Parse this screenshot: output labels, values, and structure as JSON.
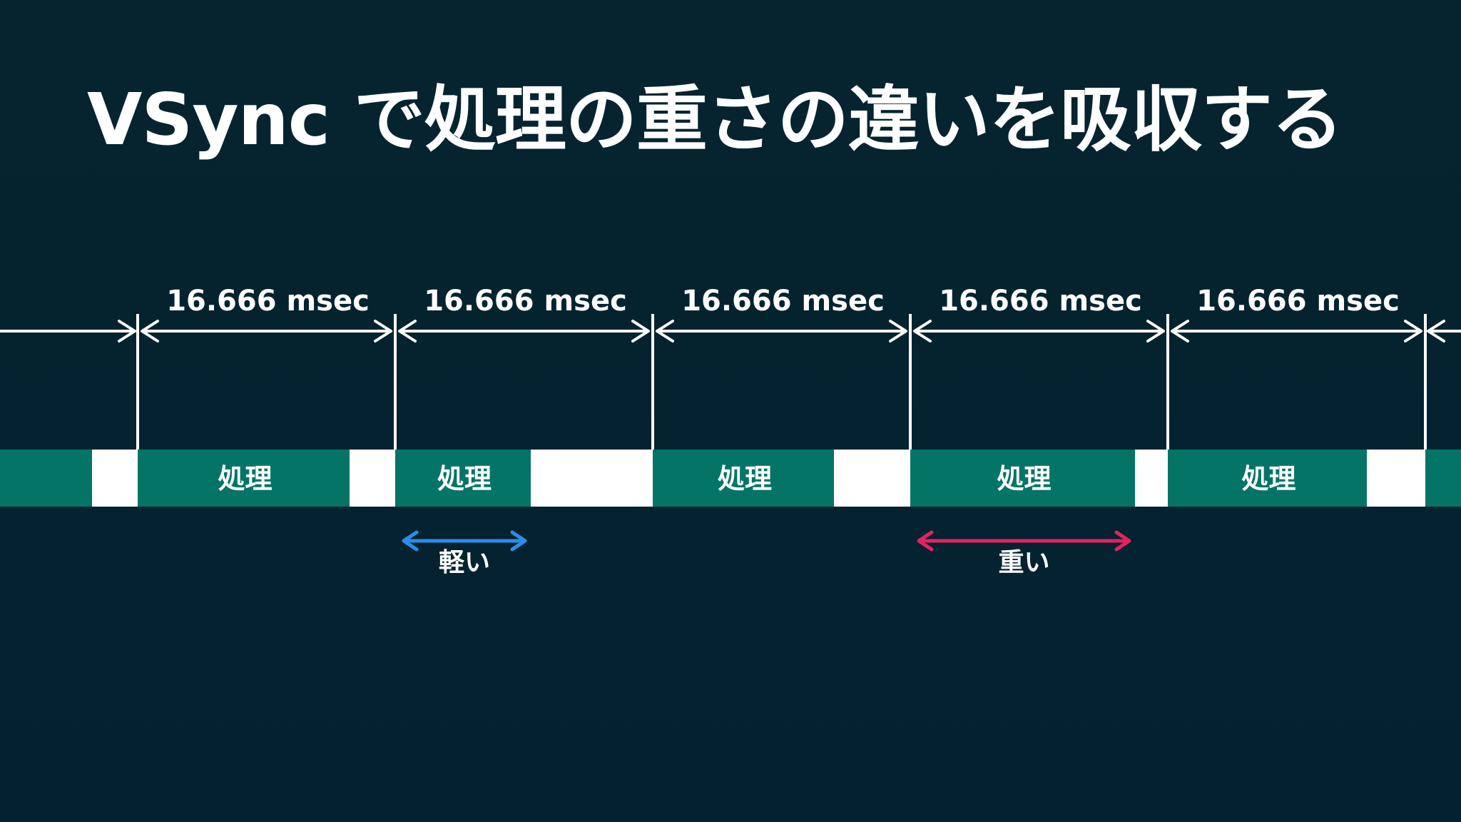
{
  "slide": {
    "title": "VSync で処理の重さの違いを吸収する"
  },
  "timeline": {
    "interval_label": "16.666 msec",
    "process_label": "処理",
    "vsync_count": 6,
    "process_fill_fractions": [
      0.82,
      0.52,
      0.7,
      0.87,
      0.77
    ]
  },
  "annotations": {
    "light": {
      "label": "軽い",
      "color": "#2a8ee8"
    },
    "heavy": {
      "label": "重い",
      "color": "#e0245e"
    }
  },
  "colors": {
    "background": "#03212f",
    "process": "#047466",
    "idle": "#ffffff",
    "line": "#ffffff"
  }
}
